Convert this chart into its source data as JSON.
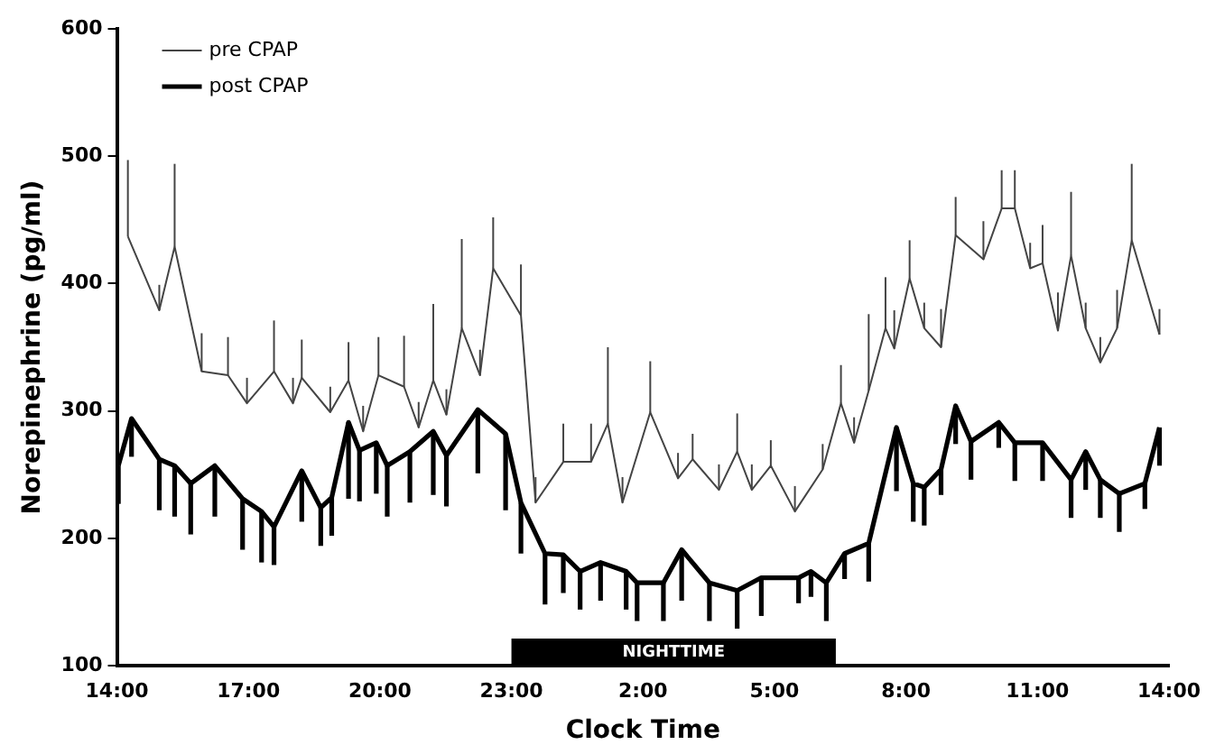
{
  "chart_data": {
    "type": "line",
    "xlabel": "Clock Time",
    "ylabel": "Norepinephrine (pg/ml)",
    "xlim": [
      "2000-01-01T14:00",
      "2000-01-02T14:00"
    ],
    "xticks": [
      {
        "value": "2000-01-01T14:00",
        "label": "14:00"
      },
      {
        "value": "2000-01-01T17:00",
        "label": "17:00"
      },
      {
        "value": "2000-01-01T20:00",
        "label": "20:00"
      },
      {
        "value": "2000-01-01T23:00",
        "label": "23:00"
      },
      {
        "value": "2000-01-02T02:00",
        "label": "2:00"
      },
      {
        "value": "2000-01-02T05:00",
        "label": "5:00"
      },
      {
        "value": "2000-01-02T08:00",
        "label": "8:00"
      },
      {
        "value": "2000-01-02T11:00",
        "label": "11:00"
      },
      {
        "value": "2000-01-02T14:00",
        "label": "14:00"
      }
    ],
    "ylim": [
      100,
      600
    ],
    "yticks": [
      100,
      200,
      300,
      400,
      500,
      600
    ],
    "grid": false,
    "legend": "top left",
    "marker": "none",
    "bands": [
      {
        "axis": "x",
        "from": "2000-01-01T23:00",
        "to": "2000-01-02T06:24",
        "label": "NIGHTTIME",
        "color": "#000000"
      }
    ],
    "series": [
      {
        "name": "pre CPAP",
        "color": "#444444",
        "line_style": "solid",
        "x": [
          "2000-01-01T14:15",
          "2000-01-01T14:58",
          "2000-01-01T15:19",
          "2000-01-01T15:56",
          "2000-01-01T16:32",
          "2000-01-01T16:58",
          "2000-01-01T17:35",
          "2000-01-01T18:01",
          "2000-01-01T18:13",
          "2000-01-01T18:52",
          "2000-01-01T19:17",
          "2000-01-01T19:37",
          "2000-01-01T19:58",
          "2000-01-01T20:33",
          "2000-01-01T20:53",
          "2000-01-01T21:13",
          "2000-01-01T21:31",
          "2000-01-01T21:52",
          "2000-01-01T22:17",
          "2000-01-01T22:35",
          "2000-01-01T23:13",
          "2000-01-01T23:33",
          "2000-01-02T00:11",
          "2000-01-02T00:49",
          "2000-01-02T01:12",
          "2000-01-02T01:32",
          "2000-01-02T02:10",
          "2000-01-02T02:48",
          "2000-01-02T03:08",
          "2000-01-02T03:44",
          "2000-01-02T04:09",
          "2000-01-02T04:29",
          "2000-01-02T04:55",
          "2000-01-02T05:28",
          "2000-01-02T06:06",
          "2000-01-02T06:31",
          "2000-01-02T06:49",
          "2000-01-02T07:09",
          "2000-01-02T07:32",
          "2000-01-02T07:44",
          "2000-01-02T08:05",
          "2000-01-02T08:25",
          "2000-01-02T08:48",
          "2000-01-02T09:08",
          "2000-01-02T09:46",
          "2000-01-02T10:11",
          "2000-01-02T10:29",
          "2000-01-02T10:50",
          "2000-01-02T11:07",
          "2000-01-02T11:28",
          "2000-01-02T11:46",
          "2000-01-02T12:06",
          "2000-01-02T12:26",
          "2000-01-02T12:49",
          "2000-01-02T13:09",
          "2000-01-02T13:47"
        ],
        "values": [
          437,
          379,
          429,
          331,
          328,
          306,
          331,
          306,
          326,
          299,
          324,
          284,
          328,
          319,
          287,
          324,
          297,
          365,
          328,
          412,
          375,
          228,
          260,
          260,
          290,
          228,
          299,
          247,
          262,
          238,
          268,
          238,
          257,
          221,
          254,
          306,
          275,
          316,
          365,
          349,
          404,
          365,
          350,
          438,
          419,
          459,
          459,
          412,
          416,
          363,
          422,
          365,
          338,
          365,
          434,
          360
        ],
        "errors": [
          [
            437,
            497
          ],
          [
            379,
            399
          ],
          [
            429,
            494
          ],
          [
            331,
            361
          ],
          [
            328,
            358
          ],
          [
            306,
            326
          ],
          [
            331,
            371
          ],
          [
            306,
            326
          ],
          [
            326,
            356
          ],
          [
            299,
            319
          ],
          [
            324,
            354
          ],
          [
            284,
            304
          ],
          [
            328,
            358
          ],
          [
            319,
            359
          ],
          [
            287,
            307
          ],
          [
            324,
            384
          ],
          [
            297,
            317
          ],
          [
            365,
            435
          ],
          [
            328,
            348
          ],
          [
            412,
            452
          ],
          [
            375,
            415
          ],
          [
            228,
            248
          ],
          [
            260,
            290
          ],
          [
            260,
            290
          ],
          [
            290,
            350
          ],
          [
            228,
            248
          ],
          [
            299,
            339
          ],
          [
            247,
            267
          ],
          [
            262,
            282
          ],
          [
            238,
            258
          ],
          [
            268,
            298
          ],
          [
            238,
            258
          ],
          [
            257,
            277
          ],
          [
            221,
            241
          ],
          [
            254,
            274
          ],
          [
            306,
            336
          ],
          [
            275,
            295
          ],
          [
            316,
            376
          ],
          [
            365,
            405
          ],
          [
            349,
            379
          ],
          [
            404,
            434
          ],
          [
            365,
            385
          ],
          [
            350,
            380
          ],
          [
            438,
            468
          ],
          [
            419,
            449
          ],
          [
            459,
            489
          ],
          [
            459,
            489
          ],
          [
            412,
            432
          ],
          [
            416,
            446
          ],
          [
            363,
            393
          ],
          [
            422,
            472
          ],
          [
            365,
            385
          ],
          [
            338,
            358
          ],
          [
            365,
            395
          ],
          [
            434,
            494
          ],
          [
            360,
            380
          ]
        ]
      },
      {
        "name": "post CPAP",
        "color": "#000000",
        "line_style": "solid",
        "x": [
          "2000-01-01T14:02",
          "2000-01-01T14:20",
          "2000-01-01T14:58",
          "2000-01-01T15:19",
          "2000-01-01T15:41",
          "2000-01-01T16:14",
          "2000-01-01T16:52",
          "2000-01-01T17:18",
          "2000-01-01T17:35",
          "2000-01-01T18:13",
          "2000-01-01T18:39",
          "2000-01-01T18:54",
          "2000-01-01T19:17",
          "2000-01-01T19:32",
          "2000-01-01T19:55",
          "2000-01-01T20:10",
          "2000-01-01T20:41",
          "2000-01-01T21:13",
          "2000-01-01T21:31",
          "2000-01-01T22:14",
          "2000-01-01T22:52",
          "2000-01-01T23:13",
          "2000-01-01T23:46",
          "2000-01-02T00:11",
          "2000-01-02T00:34",
          "2000-01-02T01:02",
          "2000-01-02T01:37",
          "2000-01-02T01:52",
          "2000-01-02T02:28",
          "2000-01-02T02:53",
          "2000-01-02T03:31",
          "2000-01-02T04:09",
          "2000-01-02T04:42",
          "2000-01-02T05:33",
          "2000-01-02T05:50",
          "2000-01-02T06:11",
          "2000-01-02T06:36",
          "2000-01-02T07:09",
          "2000-01-02T07:47",
          "2000-01-02T08:10",
          "2000-01-02T08:25",
          "2000-01-02T08:48",
          "2000-01-02T09:08",
          "2000-01-02T09:29",
          "2000-01-02T10:07",
          "2000-01-02T10:29",
          "2000-01-02T11:07",
          "2000-01-02T11:46",
          "2000-01-02T12:06",
          "2000-01-02T12:26",
          "2000-01-02T12:52",
          "2000-01-02T13:27",
          "2000-01-02T13:47"
        ],
        "values": [
          257,
          294,
          262,
          257,
          243,
          257,
          231,
          221,
          209,
          253,
          224,
          232,
          291,
          269,
          275,
          257,
          268,
          284,
          265,
          301,
          282,
          228,
          188,
          187,
          174,
          181,
          174,
          165,
          165,
          191,
          165,
          159,
          169,
          169,
          174,
          165,
          188,
          196,
          287,
          243,
          240,
          254,
          304,
          276,
          291,
          275,
          275,
          246,
          268,
          246,
          235,
          243,
          287
        ],
        "errors": [
          [
            227,
            257
          ],
          [
            264,
            294
          ],
          [
            222,
            262
          ],
          [
            217,
            257
          ],
          [
            203,
            243
          ],
          [
            217,
            257
          ],
          [
            191,
            231
          ],
          [
            181,
            221
          ],
          [
            179,
            209
          ],
          [
            213,
            253
          ],
          [
            194,
            224
          ],
          [
            202,
            232
          ],
          [
            231,
            291
          ],
          [
            229,
            269
          ],
          [
            235,
            275
          ],
          [
            217,
            257
          ],
          [
            228,
            268
          ],
          [
            234,
            284
          ],
          [
            225,
            265
          ],
          [
            251,
            301
          ],
          [
            222,
            282
          ],
          [
            188,
            228
          ],
          [
            148,
            188
          ],
          [
            157,
            187
          ],
          [
            144,
            174
          ],
          [
            151,
            181
          ],
          [
            144,
            174
          ],
          [
            135,
            165
          ],
          [
            135,
            165
          ],
          [
            151,
            191
          ],
          [
            135,
            165
          ],
          [
            129,
            159
          ],
          [
            139,
            169
          ],
          [
            149,
            169
          ],
          [
            154,
            174
          ],
          [
            135,
            165
          ],
          [
            168,
            188
          ],
          [
            166,
            196
          ],
          [
            237,
            287
          ],
          [
            213,
            243
          ],
          [
            210,
            240
          ],
          [
            234,
            254
          ],
          [
            274,
            304
          ],
          [
            246,
            276
          ],
          [
            271,
            291
          ],
          [
            245,
            275
          ],
          [
            245,
            275
          ],
          [
            216,
            246
          ],
          [
            238,
            268
          ],
          [
            216,
            246
          ],
          [
            205,
            235
          ],
          [
            223,
            243
          ],
          [
            257,
            287
          ]
        ]
      }
    ]
  }
}
